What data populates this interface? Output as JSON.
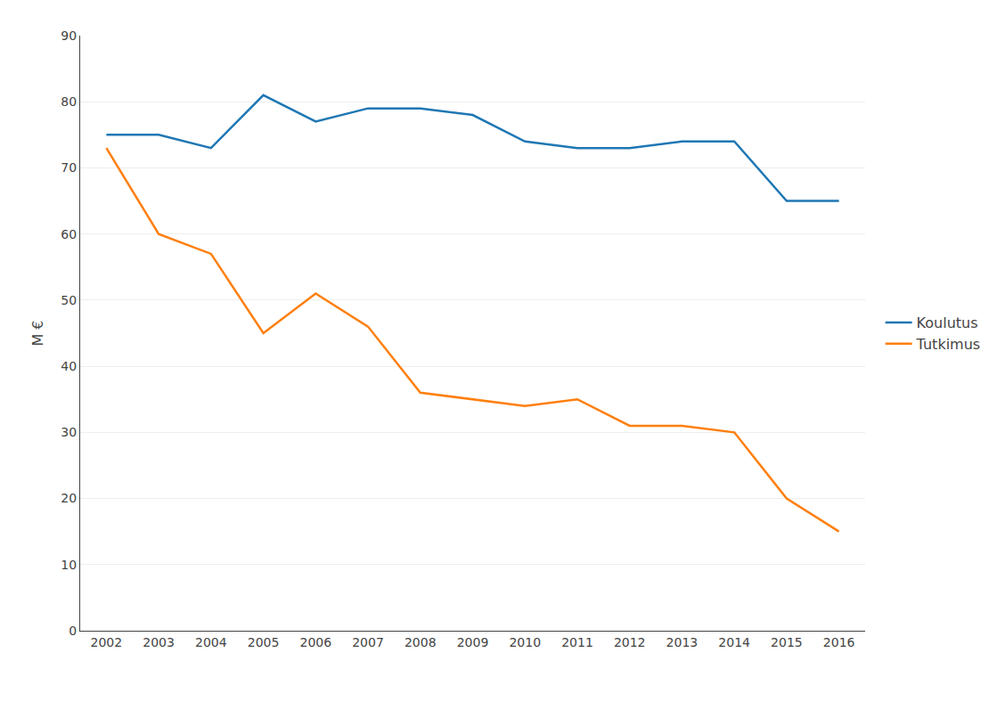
{
  "chart_data": {
    "type": "line",
    "x": [
      2002,
      2003,
      2004,
      2005,
      2006,
      2007,
      2008,
      2009,
      2010,
      2011,
      2012,
      2013,
      2014,
      2015,
      2016
    ],
    "series": [
      {
        "name": "Koulutus",
        "values": [
          75,
          75,
          73,
          81,
          77,
          79,
          79,
          78,
          74,
          73,
          73,
          74,
          74,
          65,
          65
        ]
      },
      {
        "name": "Tutkimus",
        "values": [
          73,
          60,
          57,
          45,
          51,
          46,
          36,
          35,
          34,
          35,
          31,
          31,
          30,
          20,
          15
        ]
      }
    ],
    "ylabel": "M €",
    "xlim": [
      2001.5,
      2016.5
    ],
    "xticks": [
      2002,
      2003,
      2004,
      2005,
      2006,
      2007,
      2008,
      2009,
      2010,
      2011,
      2012,
      2013,
      2014,
      2015,
      2016
    ],
    "ylim": [
      0,
      90
    ],
    "yticks": [
      0,
      10,
      20,
      30,
      40,
      50,
      60,
      70,
      80,
      90
    ],
    "grid": true,
    "legend": "right"
  }
}
